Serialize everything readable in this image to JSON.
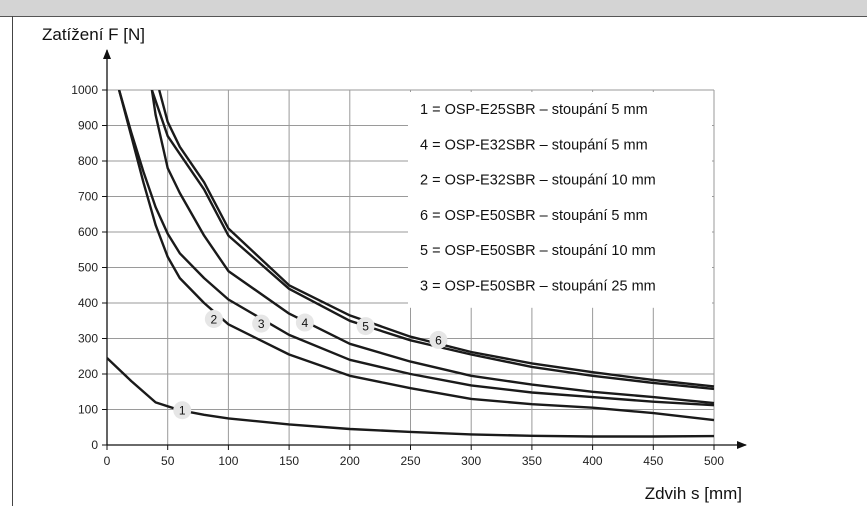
{
  "chart_data": {
    "type": "line",
    "ylabel": "Zatížení F [N]",
    "xlabel": "Zdvih s [mm]",
    "xlim": [
      0,
      500
    ],
    "ylim": [
      0,
      1000
    ],
    "x_ticks": [
      0,
      50,
      100,
      150,
      200,
      250,
      300,
      350,
      400,
      450,
      500
    ],
    "y_ticks": [
      0,
      100,
      200,
      300,
      400,
      500,
      600,
      700,
      800,
      900,
      1000
    ],
    "grid": true,
    "legend": [
      "1 = OSP-E25SBR – stoupání 5 mm",
      "4 = OSP-E32SBR – stoupání 5 mm",
      "2 = OSP-E32SBR – stoupání 10 mm",
      "6 = OSP-E50SBR – stoupání 5 mm",
      "5 = OSP-E50SBR – stoupání 10 mm",
      "3 = OSP-E50SBR – stoupání 25 mm"
    ],
    "legend_position": "top-right",
    "series": [
      {
        "name": "1",
        "label_at": [
          62,
          98
        ],
        "points": [
          [
            0,
            245
          ],
          [
            20,
            180
          ],
          [
            40,
            120
          ],
          [
            60,
            98
          ],
          [
            80,
            85
          ],
          [
            100,
            75
          ],
          [
            150,
            58
          ],
          [
            200,
            45
          ],
          [
            250,
            37
          ],
          [
            300,
            30
          ],
          [
            350,
            26
          ],
          [
            400,
            24
          ],
          [
            450,
            24
          ],
          [
            500,
            25
          ]
        ]
      },
      {
        "name": "2",
        "label_at": [
          88,
          355
        ],
        "points": [
          [
            10,
            1000
          ],
          [
            20,
            870
          ],
          [
            30,
            740
          ],
          [
            40,
            620
          ],
          [
            50,
            530
          ],
          [
            60,
            470
          ],
          [
            80,
            400
          ],
          [
            100,
            340
          ],
          [
            150,
            255
          ],
          [
            200,
            195
          ],
          [
            250,
            160
          ],
          [
            300,
            130
          ],
          [
            350,
            115
          ],
          [
            400,
            105
          ],
          [
            450,
            90
          ],
          [
            500,
            70
          ]
        ]
      },
      {
        "name": "3",
        "label_at": [
          127,
          342
        ],
        "points": [
          [
            10,
            1000
          ],
          [
            20,
            880
          ],
          [
            30,
            770
          ],
          [
            40,
            670
          ],
          [
            50,
            595
          ],
          [
            60,
            540
          ],
          [
            80,
            470
          ],
          [
            100,
            410
          ],
          [
            150,
            310
          ],
          [
            200,
            240
          ],
          [
            250,
            200
          ],
          [
            300,
            168
          ],
          [
            350,
            148
          ],
          [
            400,
            135
          ],
          [
            450,
            122
          ],
          [
            500,
            112
          ]
        ]
      },
      {
        "name": "4",
        "label_at": [
          163,
          345
        ],
        "points": [
          [
            37,
            1000
          ],
          [
            40,
            930
          ],
          [
            50,
            780
          ],
          [
            60,
            710
          ],
          [
            80,
            590
          ],
          [
            100,
            490
          ],
          [
            150,
            370
          ],
          [
            200,
            285
          ],
          [
            250,
            235
          ],
          [
            300,
            195
          ],
          [
            350,
            170
          ],
          [
            400,
            150
          ],
          [
            450,
            135
          ],
          [
            500,
            118
          ]
        ]
      },
      {
        "name": "5",
        "label_at": [
          213,
          335
        ],
        "points": [
          [
            37,
            1000
          ],
          [
            50,
            870
          ],
          [
            60,
            820
          ],
          [
            80,
            720
          ],
          [
            100,
            590
          ],
          [
            150,
            440
          ],
          [
            200,
            350
          ],
          [
            250,
            295
          ],
          [
            300,
            255
          ],
          [
            350,
            220
          ],
          [
            400,
            195
          ],
          [
            450,
            175
          ],
          [
            500,
            158
          ]
        ]
      },
      {
        "name": "6",
        "label_at": [
          273,
          296
        ],
        "points": [
          [
            43,
            1000
          ],
          [
            50,
            910
          ],
          [
            60,
            840
          ],
          [
            80,
            740
          ],
          [
            100,
            610
          ],
          [
            150,
            450
          ],
          [
            200,
            365
          ],
          [
            250,
            305
          ],
          [
            300,
            262
          ],
          [
            350,
            230
          ],
          [
            400,
            205
          ],
          [
            450,
            183
          ],
          [
            500,
            165
          ]
        ]
      }
    ]
  }
}
